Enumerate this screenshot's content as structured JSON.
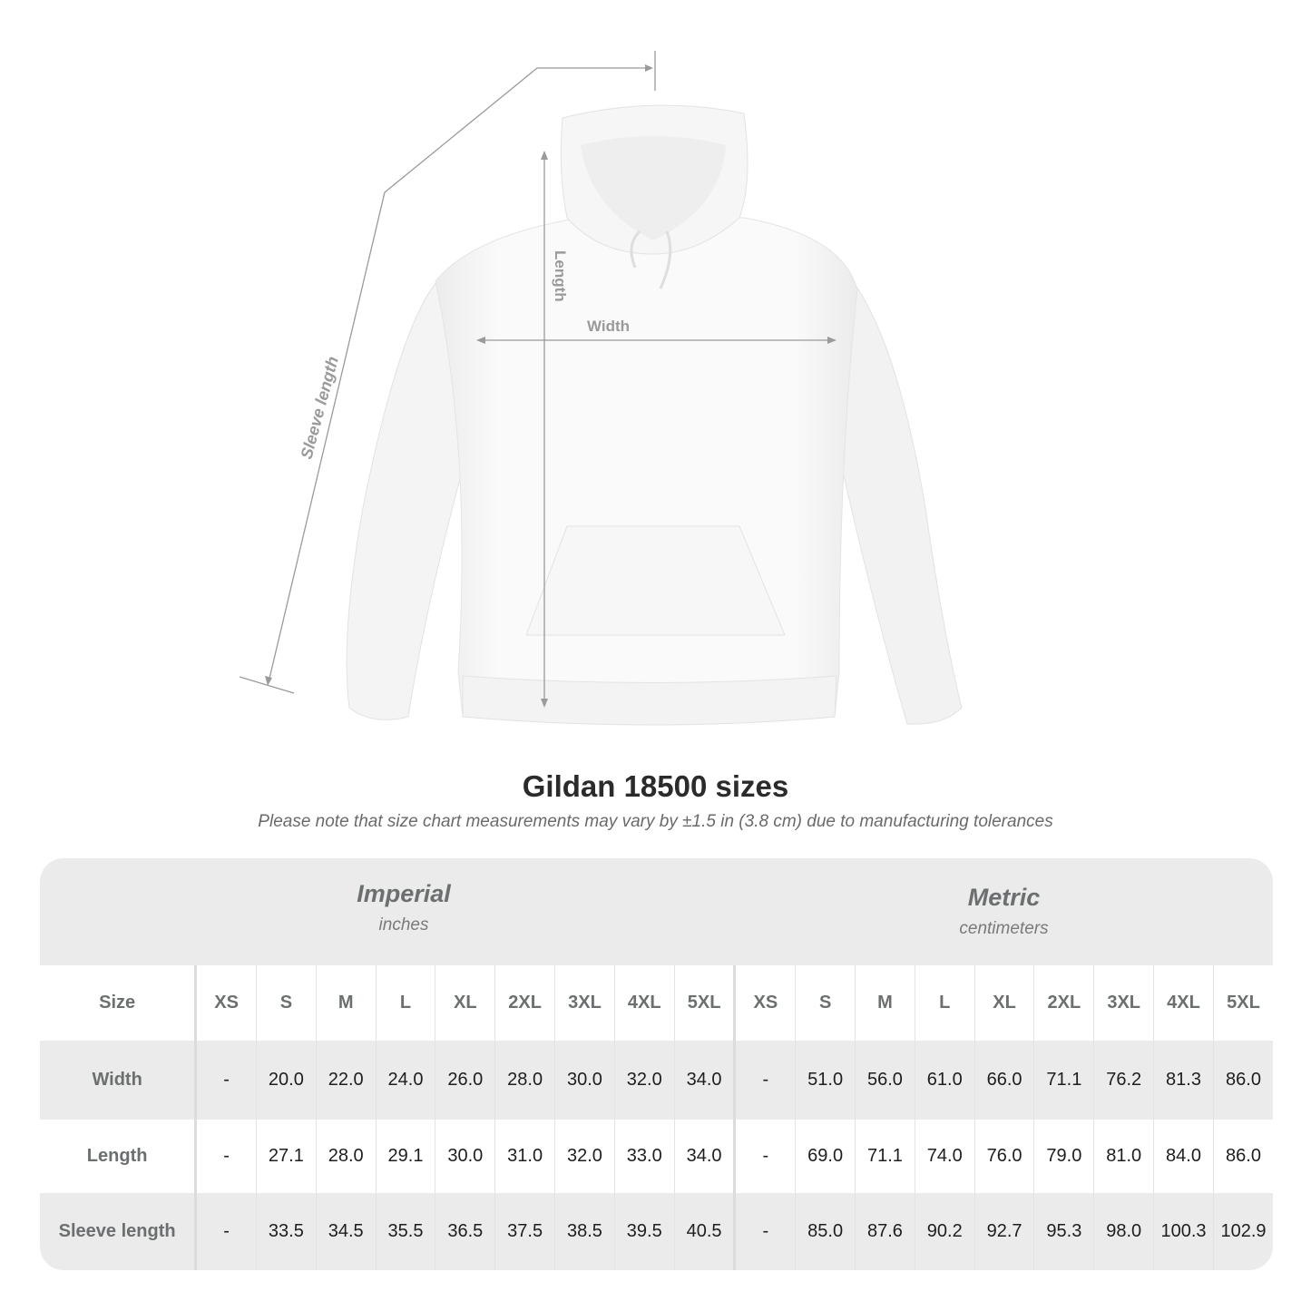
{
  "diagram": {
    "length_label": "Length",
    "width_label": "Width",
    "sleeve_label": "Sleeve length",
    "line_color": "#9a9a9a"
  },
  "title": "Gildan 18500 sizes",
  "subtitle": "Please note that size chart measurements may vary by ±1.5 in (3.8 cm) due to manufacturing tolerances",
  "table": {
    "imperial": {
      "name": "Imperial",
      "unit": "inches"
    },
    "metric": {
      "name": "Metric",
      "unit": "centimeters"
    },
    "size_header": "Size",
    "sizes": [
      "XS",
      "S",
      "M",
      "L",
      "XL",
      "2XL",
      "3XL",
      "4XL",
      "5XL"
    ],
    "rows": [
      {
        "label": "Width",
        "imperial": [
          "-",
          "20.0",
          "22.0",
          "24.0",
          "26.0",
          "28.0",
          "30.0",
          "32.0",
          "34.0"
        ],
        "metric": [
          "-",
          "51.0",
          "56.0",
          "61.0",
          "66.0",
          "71.1",
          "76.2",
          "81.3",
          "86.0"
        ]
      },
      {
        "label": "Length",
        "imperial": [
          "-",
          "27.1",
          "28.0",
          "29.1",
          "30.0",
          "31.0",
          "32.0",
          "33.0",
          "34.0"
        ],
        "metric": [
          "-",
          "69.0",
          "71.1",
          "74.0",
          "76.0",
          "79.0",
          "81.0",
          "84.0",
          "86.0"
        ]
      },
      {
        "label": "Sleeve length",
        "imperial": [
          "-",
          "33.5",
          "34.5",
          "35.5",
          "36.5",
          "37.5",
          "38.5",
          "39.5",
          "40.5"
        ],
        "metric": [
          "-",
          "85.0",
          "87.6",
          "90.2",
          "92.7",
          "95.3",
          "98.0",
          "100.3",
          "102.9"
        ]
      }
    ],
    "header_bg": "#ebebeb",
    "label_color": "#6c6f70"
  }
}
